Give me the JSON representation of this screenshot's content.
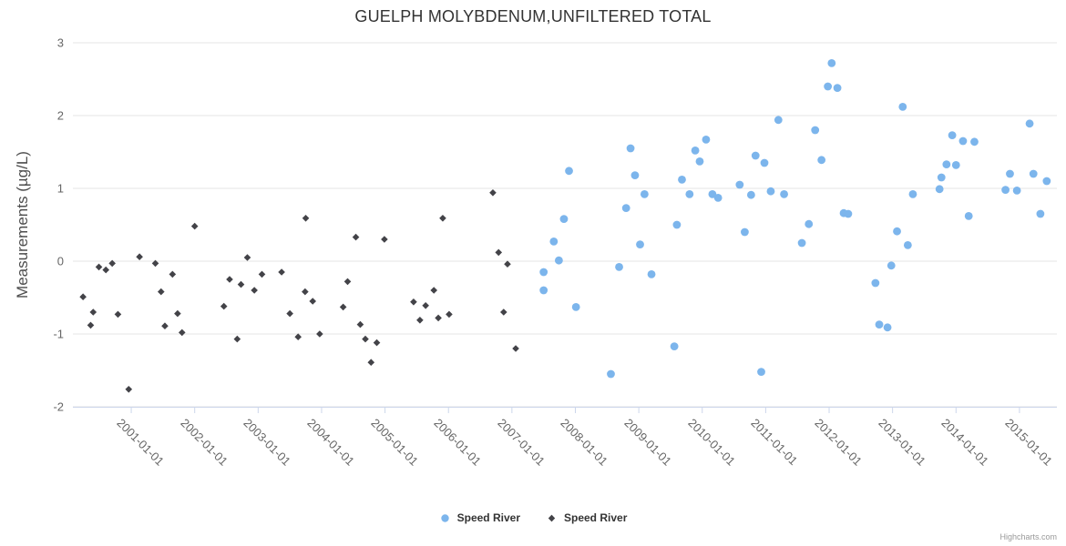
{
  "title": "GUELPH MOLYBDENUM,UNFILTERED TOTAL",
  "y_axis": {
    "title": "Measurements (µg/L)"
  },
  "credit": "Highcharts.com",
  "chart_data": {
    "type": "scatter",
    "title": "GUELPH MOLYBDENUM,UNFILTERED TOTAL",
    "xlabel": "",
    "ylabel": "Measurements (µg/L)",
    "xlim": [
      2000.08,
      2015.59
    ],
    "ylim": [
      -2,
      3
    ],
    "grid": "horizontal",
    "legend_position": "bottom-center",
    "y_ticks": [
      {
        "value": 3,
        "label": "3"
      },
      {
        "value": 2,
        "label": "2"
      },
      {
        "value": 1,
        "label": "1"
      },
      {
        "value": 0,
        "label": "0"
      },
      {
        "value": -1,
        "label": "-1"
      },
      {
        "value": -2,
        "label": "-2"
      }
    ],
    "x_ticks": [
      {
        "year": 2001,
        "label": "2001-01-01"
      },
      {
        "year": 2002,
        "label": "2002-01-01"
      },
      {
        "year": 2003,
        "label": "2003-01-01"
      },
      {
        "year": 2004,
        "label": "2004-01-01"
      },
      {
        "year": 2005,
        "label": "2005-01-01"
      },
      {
        "year": 2006,
        "label": "2006-01-01"
      },
      {
        "year": 2007,
        "label": "2007-01-01"
      },
      {
        "year": 2008,
        "label": "2008-01-01"
      },
      {
        "year": 2009,
        "label": "2009-01-01"
      },
      {
        "year": 2010,
        "label": "2010-01-01"
      },
      {
        "year": 2011,
        "label": "2011-01-01"
      },
      {
        "year": 2012,
        "label": "2012-01-01"
      },
      {
        "year": 2013,
        "label": "2013-01-01"
      },
      {
        "year": 2014,
        "label": "2014-01-01"
      },
      {
        "year": 2015,
        "label": "2015-01-01"
      }
    ],
    "series": [
      {
        "name": "Speed River",
        "marker": "circle",
        "color": "#7cb5ec",
        "points": [
          [
            2007.5,
            -0.15
          ],
          [
            2007.5,
            -0.4
          ],
          [
            2007.66,
            0.27
          ],
          [
            2007.74,
            0.01
          ],
          [
            2007.82,
            0.58
          ],
          [
            2007.9,
            1.24
          ],
          [
            2008.01,
            -0.63
          ],
          [
            2008.56,
            -1.55
          ],
          [
            2008.69,
            -0.08
          ],
          [
            2008.8,
            0.73
          ],
          [
            2008.87,
            1.55
          ],
          [
            2008.94,
            1.18
          ],
          [
            2009.02,
            0.23
          ],
          [
            2009.09,
            0.92
          ],
          [
            2009.2,
            -0.18
          ],
          [
            2009.56,
            -1.17
          ],
          [
            2009.6,
            0.5
          ],
          [
            2009.68,
            1.12
          ],
          [
            2009.8,
            0.92
          ],
          [
            2009.89,
            1.52
          ],
          [
            2009.96,
            1.37
          ],
          [
            2010.06,
            1.67
          ],
          [
            2010.16,
            0.92
          ],
          [
            2010.25,
            0.87
          ],
          [
            2010.59,
            1.05
          ],
          [
            2010.67,
            0.4
          ],
          [
            2010.77,
            0.91
          ],
          [
            2010.84,
            1.45
          ],
          [
            2010.93,
            -1.52
          ],
          [
            2010.98,
            1.35
          ],
          [
            2011.08,
            0.96
          ],
          [
            2011.2,
            1.94
          ],
          [
            2011.29,
            0.92
          ],
          [
            2011.57,
            0.25
          ],
          [
            2011.68,
            0.51
          ],
          [
            2011.78,
            1.8
          ],
          [
            2011.88,
            1.39
          ],
          [
            2011.98,
            2.4
          ],
          [
            2012.04,
            2.72
          ],
          [
            2012.13,
            2.38
          ],
          [
            2012.23,
            0.66
          ],
          [
            2012.3,
            0.65
          ],
          [
            2012.73,
            -0.3
          ],
          [
            2012.79,
            -0.87
          ],
          [
            2012.92,
            -0.91
          ],
          [
            2012.98,
            -0.06
          ],
          [
            2013.07,
            0.41
          ],
          [
            2013.16,
            2.12
          ],
          [
            2013.24,
            0.22
          ],
          [
            2013.32,
            0.92
          ],
          [
            2013.74,
            0.99
          ],
          [
            2013.77,
            1.15
          ],
          [
            2013.85,
            1.33
          ],
          [
            2013.94,
            1.73
          ],
          [
            2014.0,
            1.32
          ],
          [
            2014.11,
            1.65
          ],
          [
            2014.2,
            0.62
          ],
          [
            2014.29,
            1.64
          ],
          [
            2014.78,
            0.98
          ],
          [
            2014.85,
            1.2
          ],
          [
            2014.96,
            0.97
          ],
          [
            2015.16,
            1.89
          ],
          [
            2015.22,
            1.2
          ],
          [
            2015.33,
            0.65
          ],
          [
            2015.43,
            1.1
          ]
        ]
      },
      {
        "name": "Speed River",
        "marker": "diamond",
        "color": "#434348",
        "points": [
          [
            2000.24,
            -0.49
          ],
          [
            2000.36,
            -0.88
          ],
          [
            2000.4,
            -0.7
          ],
          [
            2000.49,
            -0.08
          ],
          [
            2000.6,
            -0.12
          ],
          [
            2000.7,
            -0.03
          ],
          [
            2000.79,
            -0.73
          ],
          [
            2000.96,
            -1.76
          ],
          [
            2001.13,
            0.06
          ],
          [
            2001.38,
            -0.03
          ],
          [
            2001.47,
            -0.42
          ],
          [
            2001.53,
            -0.89
          ],
          [
            2001.65,
            -0.18
          ],
          [
            2001.73,
            -0.72
          ],
          [
            2001.8,
            -0.98
          ],
          [
            2002.0,
            0.48
          ],
          [
            2002.46,
            -0.62
          ],
          [
            2002.55,
            -0.25
          ],
          [
            2002.67,
            -1.07
          ],
          [
            2002.73,
            -0.32
          ],
          [
            2002.83,
            0.05
          ],
          [
            2002.94,
            -0.4
          ],
          [
            2003.06,
            -0.18
          ],
          [
            2003.37,
            -0.15
          ],
          [
            2003.5,
            -0.72
          ],
          [
            2003.63,
            -1.04
          ],
          [
            2003.74,
            -0.42
          ],
          [
            2003.75,
            0.59
          ],
          [
            2003.86,
            -0.55
          ],
          [
            2003.97,
            -1.0
          ],
          [
            2004.34,
            -0.63
          ],
          [
            2004.41,
            -0.28
          ],
          [
            2004.54,
            0.33
          ],
          [
            2004.61,
            -0.87
          ],
          [
            2004.69,
            -1.07
          ],
          [
            2004.78,
            -1.39
          ],
          [
            2004.87,
            -1.12
          ],
          [
            2004.99,
            0.3
          ],
          [
            2005.45,
            -0.56
          ],
          [
            2005.55,
            -0.81
          ],
          [
            2005.64,
            -0.61
          ],
          [
            2005.77,
            -0.4
          ],
          [
            2005.84,
            -0.78
          ],
          [
            2005.91,
            0.59
          ],
          [
            2006.01,
            -0.73
          ],
          [
            2006.7,
            0.94
          ],
          [
            2006.79,
            0.12
          ],
          [
            2006.87,
            -0.7
          ],
          [
            2006.93,
            -0.04
          ],
          [
            2007.06,
            -1.2
          ]
        ]
      }
    ],
    "colors": {
      "gridline": "#e6e6e6",
      "axis_line": "#ccd6eb",
      "tick": "#ccd6eb"
    }
  }
}
